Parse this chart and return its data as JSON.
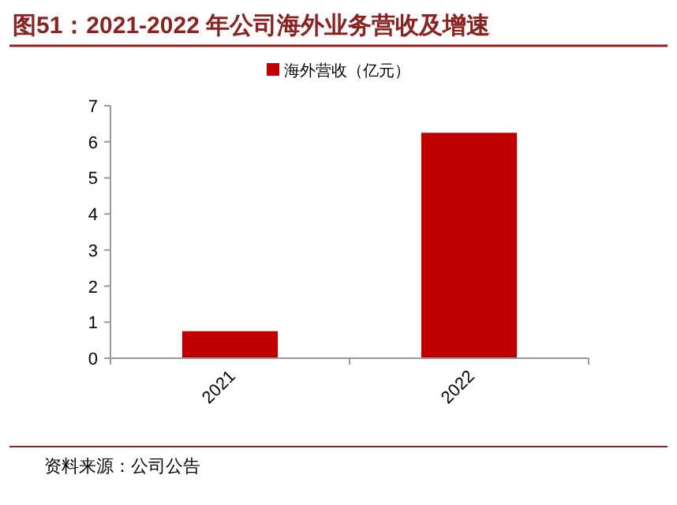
{
  "chart_data": {
    "type": "bar",
    "title": "图51：2021-2022 年公司海外业务营收及增速",
    "categories": [
      "2021",
      "2022"
    ],
    "series": [
      {
        "name": "海外营收（亿元）",
        "color": "#c00000",
        "values": [
          0.75,
          6.25
        ]
      }
    ],
    "ylim": [
      0,
      7
    ],
    "yticks": [
      0,
      1,
      2,
      3,
      4,
      5,
      6,
      7
    ],
    "grid": false,
    "legend": "top",
    "annotations": [
      "资料来源：公司公告"
    ]
  }
}
